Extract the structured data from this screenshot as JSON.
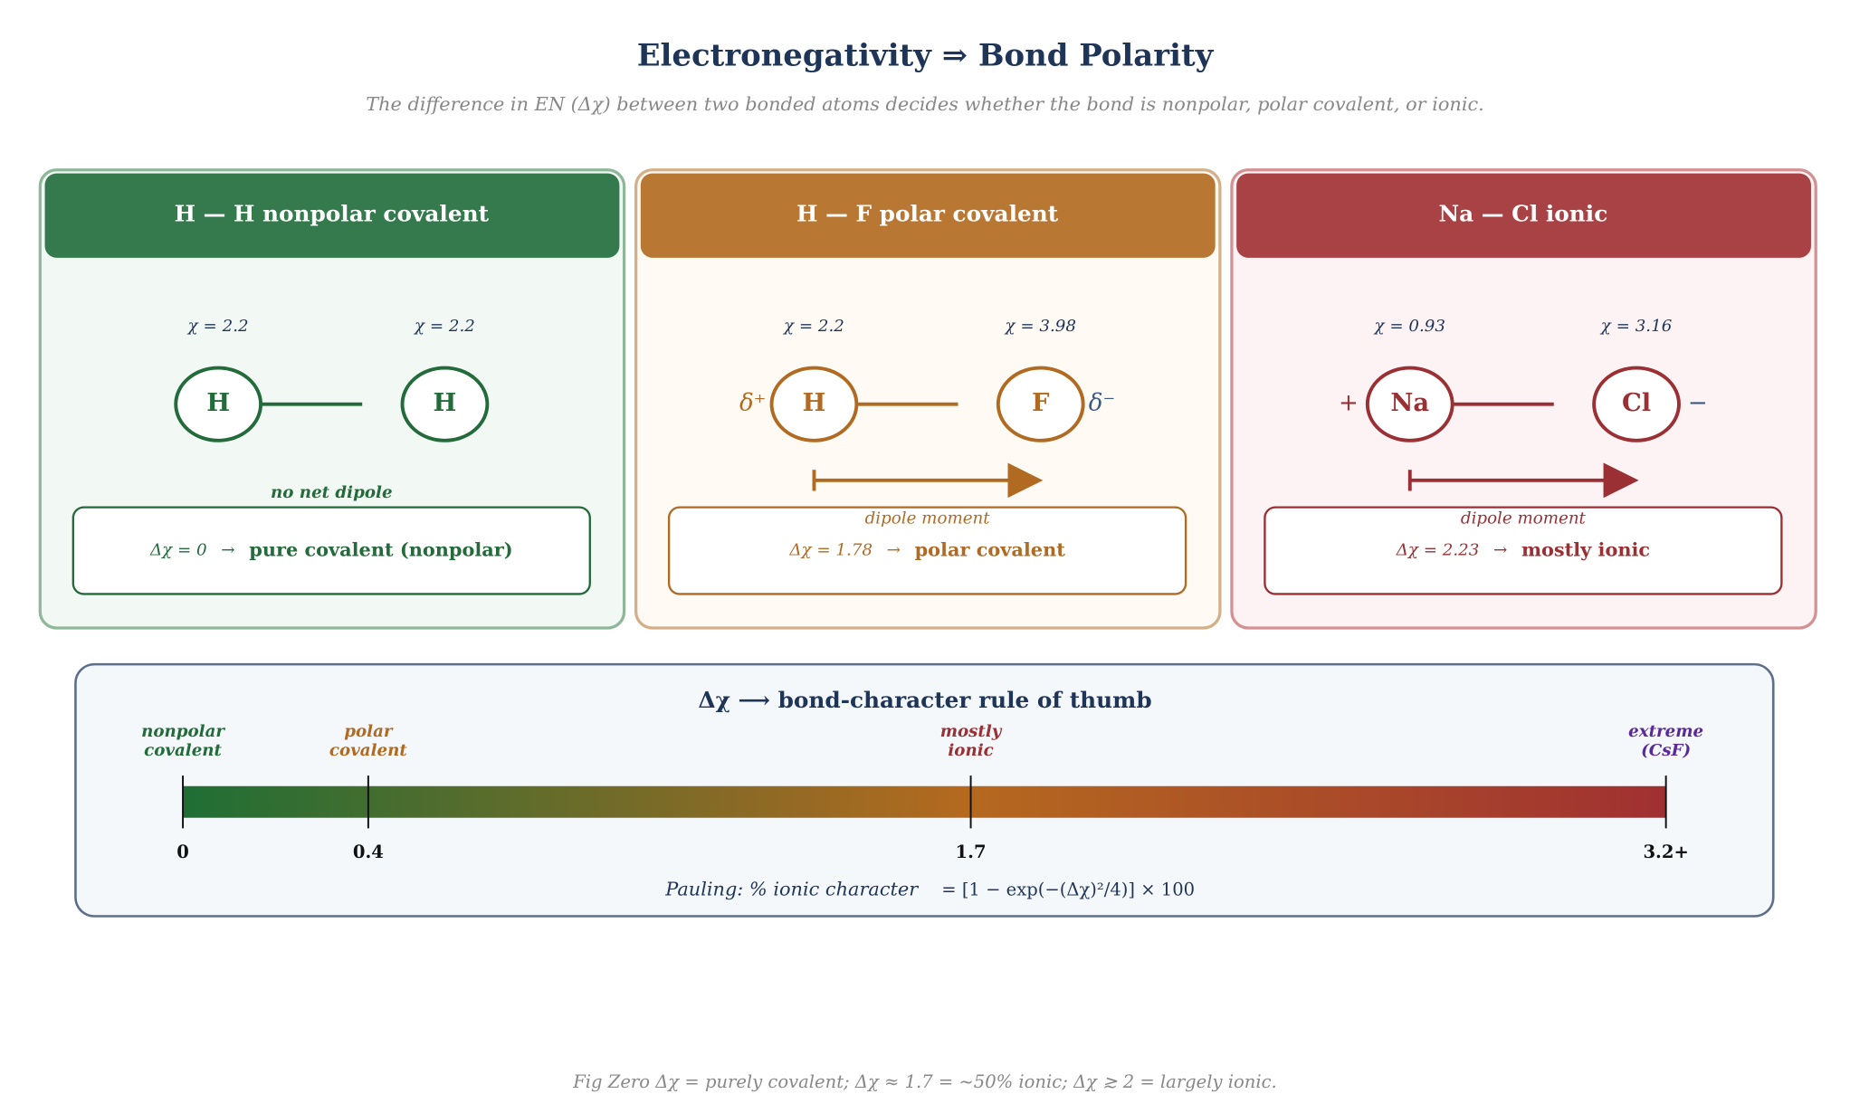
{
  "title": "Electronegativity ⇒ Bond Polarity",
  "subtitle": "The difference in EN (Δχ) between two bonded atoms decides whether the bond is nonpolar, polar covalent, or ionic.",
  "panels": [
    {
      "header": "H — H    nonpolar covalent",
      "color": "#236b3a",
      "header_color": "#357a4c",
      "border": "#8fb89a",
      "background": "#f2f8f4",
      "atoms": [
        {
          "symbol": "H",
          "en": "χ = 2.2"
        },
        {
          "symbol": "H",
          "en": "χ = 2.2"
        }
      ],
      "note": "no net dipole",
      "delta": "Δχ = 0",
      "arrow_sign": "→",
      "result": "pure covalent (nonpolar)"
    },
    {
      "header": "H — F    polar covalent",
      "color": "#b06a22",
      "header_color": "#b87834",
      "border": "#d4b08a",
      "background": "#fffaf3",
      "atoms": [
        {
          "symbol": "H",
          "en": "χ = 2.2",
          "charge": "δ⁺"
        },
        {
          "symbol": "F",
          "en": "χ = 3.98",
          "charge": "δ⁻"
        }
      ],
      "note": "dipole moment",
      "delta": "Δχ = 1.78",
      "arrow_sign": "→",
      "result": "polar covalent",
      "dipole": true
    },
    {
      "header": "Na — Cl   ionic",
      "color": "#9a3034",
      "header_color": "#a84244",
      "border": "#d49093",
      "background": "#fdf3f4",
      "atoms": [
        {
          "symbol": "Na",
          "en": "χ = 0.93",
          "charge": "+"
        },
        {
          "symbol": "Cl",
          "en": "χ = 3.16",
          "charge": "−"
        }
      ],
      "note": "dipole moment",
      "delta": "Δχ = 2.23",
      "arrow_sign": "→",
      "result": "mostly ionic",
      "dipole": true
    }
  ],
  "scale": {
    "title": "Δχ   ⟶   bond-character rule of thumb",
    "xlim": [
      0,
      3.2
    ],
    "ticks": [
      {
        "value": 0,
        "label": "0",
        "name": [
          "nonpolar",
          "covalent"
        ],
        "color": "#236b3a"
      },
      {
        "value": 0.4,
        "label": "0.4",
        "name": [
          "polar",
          "covalent"
        ],
        "color": "#b06a22"
      },
      {
        "value": 1.7,
        "label": "1.7",
        "name": [
          "mostly",
          "ionic"
        ],
        "color": "#9a3034"
      },
      {
        "value": 3.2,
        "label": "3.2+",
        "name": [
          "extreme",
          "(CsF)"
        ],
        "color": "#5b2a9a"
      }
    ],
    "formula_label": "Pauling: % ionic character",
    "formula": "= [1 − exp(−(Δχ)²/4)] × 100"
  },
  "caption": "Fig  Zero Δχ = purely covalent; Δχ ≈ 1.7 = ~50% ionic; Δχ ≳ 2 = largely ionic."
}
